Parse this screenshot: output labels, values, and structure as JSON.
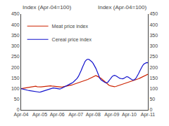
{
  "chart_data": {
    "type": "line",
    "annotations": [
      "Index (Apr-04=100)",
      "Index (Apr-04=100)"
    ],
    "categories": [
      "Apr-04",
      null,
      null,
      null,
      null,
      null,
      null,
      null,
      null,
      null,
      null,
      null,
      null,
      null,
      "Apr-05",
      null,
      null,
      null,
      null,
      null,
      null,
      null,
      null,
      null,
      null,
      null,
      null,
      "Apr-06",
      null,
      null,
      null,
      null,
      null,
      null,
      null,
      null,
      null,
      null,
      null,
      null,
      null,
      "Apr-07",
      null,
      null,
      null,
      null,
      null,
      null,
      null,
      null,
      null,
      null,
      null,
      null,
      "Apr-08",
      null,
      null,
      null,
      null,
      null,
      null,
      null,
      null,
      null,
      null,
      null,
      null,
      null,
      "Apr-09",
      null,
      null,
      null,
      null,
      null,
      null,
      null,
      null,
      null,
      null,
      null,
      null,
      "Apr-10",
      null,
      null,
      null,
      null,
      null,
      null,
      null,
      null,
      null,
      null,
      null,
      null,
      null,
      "Apr-11"
    ],
    "series": [
      {
        "name": "Meat price index",
        "color": "#cc2200",
        "values": [
          100,
          101,
          102,
          103,
          104,
          105,
          106,
          107,
          108,
          109,
          110,
          111,
          109,
          108,
          107,
          108,
          109,
          110,
          111,
          112,
          113,
          114,
          113,
          112,
          111,
          110,
          109,
          108,
          107,
          106,
          107,
          108,
          109,
          110,
          111,
          112,
          113,
          115,
          117,
          119,
          121,
          123,
          125,
          127,
          129,
          131,
          133,
          135,
          137,
          140,
          143,
          146,
          149,
          152,
          155,
          158,
          161,
          158,
          155,
          152,
          148,
          142,
          136,
          130,
          124,
          118,
          115,
          113,
          111,
          110,
          109,
          110,
          112,
          114,
          116,
          118,
          120,
          122,
          124,
          126,
          128,
          130,
          132,
          134,
          136,
          138,
          140,
          143,
          146,
          149,
          152,
          155,
          158,
          161,
          164,
          167
        ]
      },
      {
        "name": "Cereal price index",
        "color": "#1111cc",
        "values": [
          100,
          98,
          96,
          94,
          93,
          92,
          91,
          90,
          89,
          88,
          87,
          86,
          85,
          84,
          83,
          85,
          87,
          89,
          91,
          93,
          95,
          97,
          99,
          101,
          103,
          102,
          101,
          100,
          99,
          98,
          100,
          103,
          106,
          109,
          112,
          115,
          118,
          122,
          126,
          130,
          135,
          140,
          148,
          158,
          170,
          185,
          200,
          215,
          228,
          235,
          238,
          236,
          232,
          226,
          218,
          208,
          195,
          180,
          163,
          148,
          140,
          135,
          130,
          128,
          127,
          130,
          138,
          148,
          155,
          160,
          162,
          160,
          155,
          150,
          148,
          147,
          146,
          148,
          152,
          156,
          155,
          150,
          145,
          142,
          140,
          142,
          148,
          158,
          170,
          183,
          196,
          207,
          215,
          220,
          222,
          221
        ]
      }
    ],
    "ylim": [
      0,
      450
    ],
    "yticks": [
      0,
      50,
      100,
      150,
      200,
      250,
      300,
      350,
      400,
      450
    ],
    "y2lim": [
      0,
      450
    ],
    "y2ticks": [
      0,
      50,
      100,
      150,
      200,
      250,
      300,
      350,
      400,
      450
    ],
    "grid": false,
    "legend": "upper left"
  }
}
